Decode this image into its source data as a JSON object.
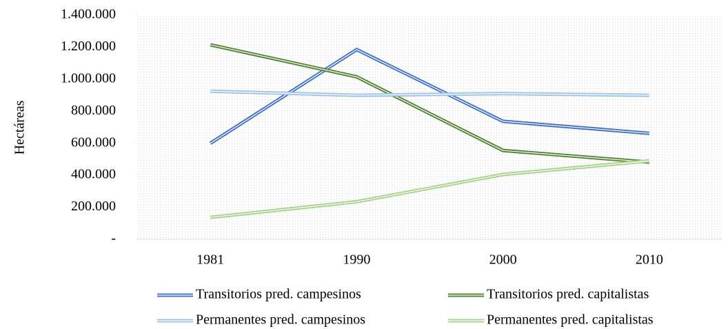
{
  "chart_data": {
    "type": "line",
    "y_label": "Hectáreas",
    "categories": [
      "1981",
      "1990",
      "2000",
      "2010"
    ],
    "series": [
      {
        "name": "Transitorios pred. campesinos",
        "color": "#4472c4",
        "values": [
          600000,
          1185000,
          737000,
          662000
        ]
      },
      {
        "name": "Transitorios pred. capitalistas",
        "color": "#548235",
        "values": [
          1215000,
          1015000,
          555000,
          482000
        ]
      },
      {
        "name": "Permanentes pred. campesinos",
        "color": "#9dc3e6",
        "values": [
          925000,
          900000,
          910000,
          900000
        ]
      },
      {
        "name": "Permanentes pred. capitalistas",
        "color": "#a9d18e",
        "values": [
          137000,
          235000,
          405000,
          490000
        ]
      }
    ],
    "ylim": [
      0,
      1400000
    ],
    "yticks": [
      {
        "value": 0,
        "label": "-"
      },
      {
        "value": 200000,
        "label": "200.000"
      },
      {
        "value": 400000,
        "label": "400.000"
      },
      {
        "value": 600000,
        "label": "600.000"
      },
      {
        "value": 800000,
        "label": "800.000"
      },
      {
        "value": 1000000,
        "label": "1.000.000"
      },
      {
        "value": 1200000,
        "label": "1.200.000"
      },
      {
        "value": 1400000,
        "label": "1.400.000"
      }
    ]
  }
}
